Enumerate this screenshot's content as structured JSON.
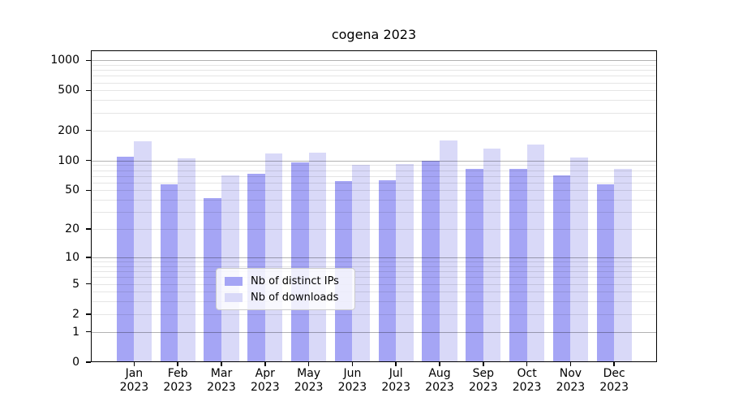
{
  "chart_data": {
    "type": "bar",
    "title": "cogena 2023",
    "categories": [
      "Jan",
      "Feb",
      "Mar",
      "Apr",
      "May",
      "Jun",
      "Jul",
      "Aug",
      "Sep",
      "Oct",
      "Nov",
      "Dec"
    ],
    "category_year": "2023",
    "series": [
      {
        "name": "Nb of distinct IPs",
        "color": "#a5a5f5",
        "values": [
          110,
          58,
          42,
          73,
          95,
          62,
          63,
          100,
          82,
          83,
          71,
          58
        ]
      },
      {
        "name": "Nb of downloads",
        "color": "#d9d9f8",
        "values": [
          155,
          105,
          71,
          118,
          120,
          90,
          92,
          160,
          132,
          145,
          107,
          82
        ]
      }
    ],
    "y_axis": {
      "scale": "log10(1+v)",
      "tick_labels": [
        "0",
        "1",
        "2",
        "5",
        "10",
        "20",
        "50",
        "100",
        "200",
        "500",
        "1000"
      ],
      "tick_values": [
        0,
        1,
        2,
        5,
        10,
        20,
        50,
        100,
        200,
        500,
        1000
      ],
      "major_gridline_values": [
        1,
        10,
        100,
        1000
      ],
      "top_value": 1256
    },
    "xlabel": "",
    "ylabel": "",
    "grid": true,
    "legend": {
      "position": "bottom-center"
    }
  }
}
